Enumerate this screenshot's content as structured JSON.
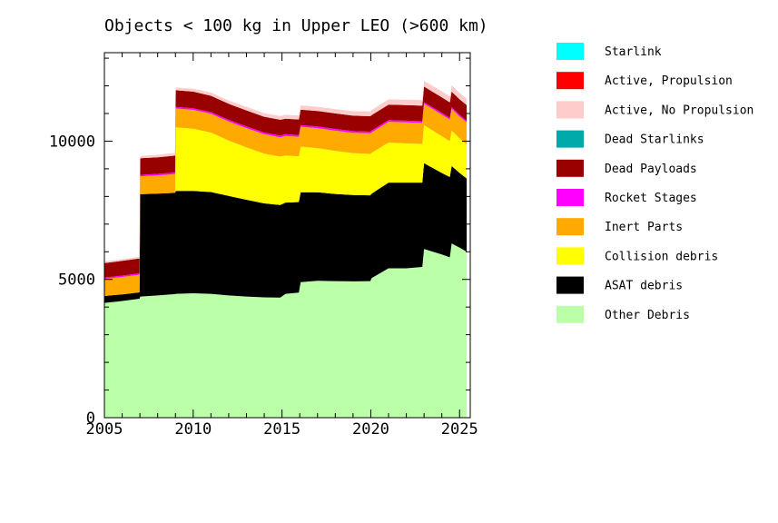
{
  "chart_data": {
    "type": "area",
    "stacked": true,
    "title": "Objects < 100 kg in Upper LEO (>600 km)",
    "xlabel": "",
    "ylabel": "",
    "xlim": [
      2005,
      2025.6
    ],
    "ylim": [
      0,
      13200
    ],
    "x_ticks": [
      2005,
      2010,
      2015,
      2020,
      2025
    ],
    "y_ticks": [
      0,
      5000,
      10000
    ],
    "x_tick_labels": [
      "2005",
      "2010",
      "2015",
      "2020",
      "2025"
    ],
    "y_tick_labels": [
      "0",
      "5000",
      "10000"
    ],
    "legend_position": "right",
    "x": [
      2005.0,
      2006.0,
      2006.98,
      2007.02,
      2008.0,
      2008.98,
      2009.02,
      2010.0,
      2011.0,
      2012.0,
      2013.0,
      2014.0,
      2014.9,
      2015.2,
      2015.95,
      2016.05,
      2017.0,
      2018.0,
      2019.0,
      2019.97,
      2020.05,
      2021.0,
      2022.0,
      2022.9,
      2023.0,
      2024.0,
      2024.45,
      2024.55,
      2025.0,
      2025.4
    ],
    "series": [
      {
        "name": "Other Debris",
        "color": "#bbffa8",
        "values": [
          4150,
          4220,
          4300,
          4380,
          4420,
          4470,
          4480,
          4500,
          4480,
          4420,
          4380,
          4350,
          4340,
          4480,
          4520,
          4900,
          4950,
          4940,
          4930,
          4940,
          5050,
          5400,
          5400,
          5450,
          6100,
          5900,
          5800,
          6300,
          6150,
          6000
        ]
      },
      {
        "name": "ASAT debris",
        "color": "#000000",
        "values": [
          250,
          240,
          230,
          3700,
          3680,
          3660,
          3720,
          3700,
          3680,
          3600,
          3500,
          3400,
          3350,
          3300,
          3280,
          3250,
          3200,
          3150,
          3120,
          3100,
          3050,
          3100,
          3100,
          3050,
          3100,
          2950,
          2900,
          2800,
          2700,
          2650
        ]
      },
      {
        "name": "Collision debris",
        "color": "#ffff00",
        "values": [
          0,
          0,
          0,
          0,
          0,
          0,
          2300,
          2250,
          2150,
          2000,
          1900,
          1800,
          1750,
          1700,
          1650,
          1650,
          1600,
          1560,
          1520,
          1500,
          1480,
          1450,
          1420,
          1400,
          1380,
          1330,
          1300,
          1280,
          1250,
          1230
        ]
      },
      {
        "name": "Inert Parts",
        "color": "#ffaa00",
        "values": [
          620,
          630,
          640,
          650,
          660,
          680,
          680,
          680,
          680,
          690,
          690,
          700,
          700,
          710,
          710,
          720,
          720,
          730,
          730,
          740,
          740,
          750,
          760,
          760,
          770,
          780,
          780,
          790,
          790,
          800
        ]
      },
      {
        "name": "Rocket Stages",
        "color": "#ff00ff",
        "values": [
          50,
          50,
          50,
          50,
          55,
          55,
          60,
          60,
          60,
          60,
          62,
          62,
          62,
          62,
          62,
          62,
          62,
          62,
          62,
          62,
          62,
          62,
          62,
          62,
          62,
          62,
          62,
          62,
          62,
          62
        ]
      },
      {
        "name": "Dead Payloads",
        "color": "#990000",
        "values": [
          520,
          530,
          540,
          600,
          600,
          610,
          600,
          600,
          590,
          580,
          580,
          570,
          570,
          560,
          560,
          560,
          560,
          560,
          560,
          560,
          560,
          560,
          560,
          560,
          560,
          560,
          560,
          560,
          560,
          560
        ]
      },
      {
        "name": "Dead Starlinks",
        "color": "#00aaaa",
        "values": [
          0,
          0,
          0,
          0,
          0,
          0,
          0,
          0,
          0,
          0,
          0,
          0,
          0,
          0,
          0,
          0,
          0,
          0,
          0,
          0,
          0,
          0,
          0,
          0,
          0,
          0,
          0,
          0,
          0,
          0
        ]
      },
      {
        "name": "Active, No Propulsion",
        "color": "#ffcccc",
        "values": [
          60,
          60,
          60,
          90,
          90,
          100,
          100,
          110,
          120,
          120,
          130,
          130,
          140,
          140,
          150,
          150,
          150,
          160,
          160,
          170,
          180,
          190,
          200,
          200,
          210,
          220,
          220,
          230,
          230,
          240
        ]
      },
      {
        "name": "Active, Propulsion",
        "color": "#ff0000",
        "values": [
          0,
          0,
          0,
          0,
          0,
          0,
          0,
          0,
          0,
          0,
          0,
          0,
          0,
          0,
          0,
          0,
          0,
          0,
          0,
          0,
          0,
          0,
          0,
          0,
          0,
          0,
          0,
          0,
          0,
          0
        ]
      },
      {
        "name": "Starlink",
        "color": "#00ffff",
        "values": [
          0,
          0,
          0,
          0,
          0,
          0,
          0,
          0,
          0,
          0,
          0,
          0,
          0,
          0,
          0,
          0,
          0,
          0,
          0,
          0,
          0,
          0,
          0,
          0,
          0,
          0,
          0,
          0,
          0,
          0
        ]
      }
    ],
    "legend": [
      {
        "name": "Starlink",
        "color": "#00ffff"
      },
      {
        "name": "Active, Propulsion",
        "color": "#ff0000"
      },
      {
        "name": "Active, No Propulsion",
        "color": "#ffcccc"
      },
      {
        "name": "Dead Starlinks",
        "color": "#00aaaa"
      },
      {
        "name": "Dead Payloads",
        "color": "#990000"
      },
      {
        "name": "Rocket Stages",
        "color": "#ff00ff"
      },
      {
        "name": "Inert Parts",
        "color": "#ffaa00"
      },
      {
        "name": "Collision debris",
        "color": "#ffff00"
      },
      {
        "name": "ASAT debris",
        "color": "#000000"
      },
      {
        "name": "Other Debris",
        "color": "#bbffa8"
      }
    ]
  }
}
